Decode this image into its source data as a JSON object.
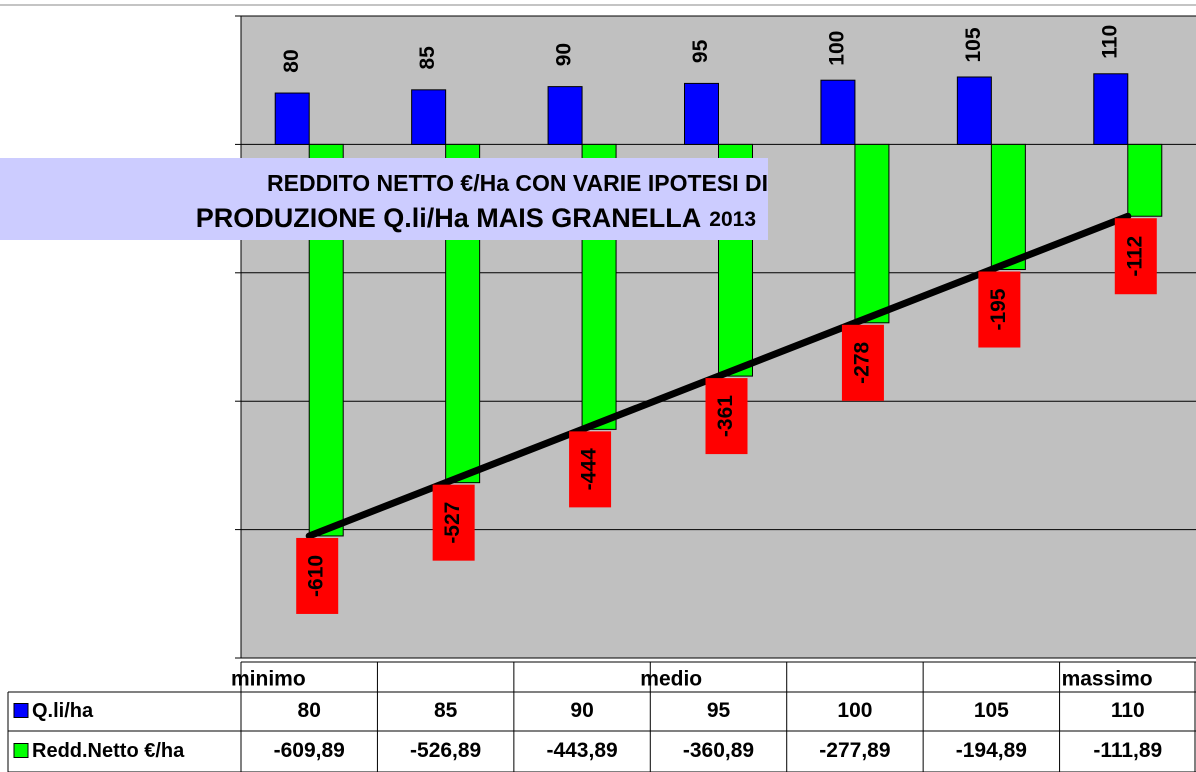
{
  "chart_data": {
    "type": "bar",
    "title": [
      "REDDITO NETTO €/Ha CON  VARIE IPOTESI DI",
      "PRODUZIONE Q.li/Ha MAIS GRANELLA",
      "2013"
    ],
    "categories": [
      "minimo",
      null,
      null,
      "medio",
      null,
      null,
      "massimo"
    ],
    "series": [
      {
        "name": "Q.li/ha",
        "color": "#0000ff",
        "values": [
          80,
          85,
          90,
          95,
          100,
          105,
          110
        ]
      },
      {
        "name": "Redd.Netto €/ha",
        "color": "#00ff00",
        "values": [
          -609.89,
          -526.89,
          -443.89,
          -360.89,
          -277.89,
          -194.89,
          -111.89
        ],
        "value_labels": [
          "-610",
          "-527",
          "-444",
          "-361",
          "-278",
          "-195",
          "-112"
        ],
        "table_labels": [
          "-609,89",
          "-526,89",
          "-443,89",
          "-360,89",
          "-277,89",
          "-194,89",
          "-111,89"
        ]
      }
    ],
    "ylim": [
      -800,
      200
    ],
    "yticks": [
      -800,
      -600,
      -400,
      -200,
      0,
      200
    ],
    "grid": true,
    "trendline": true
  }
}
